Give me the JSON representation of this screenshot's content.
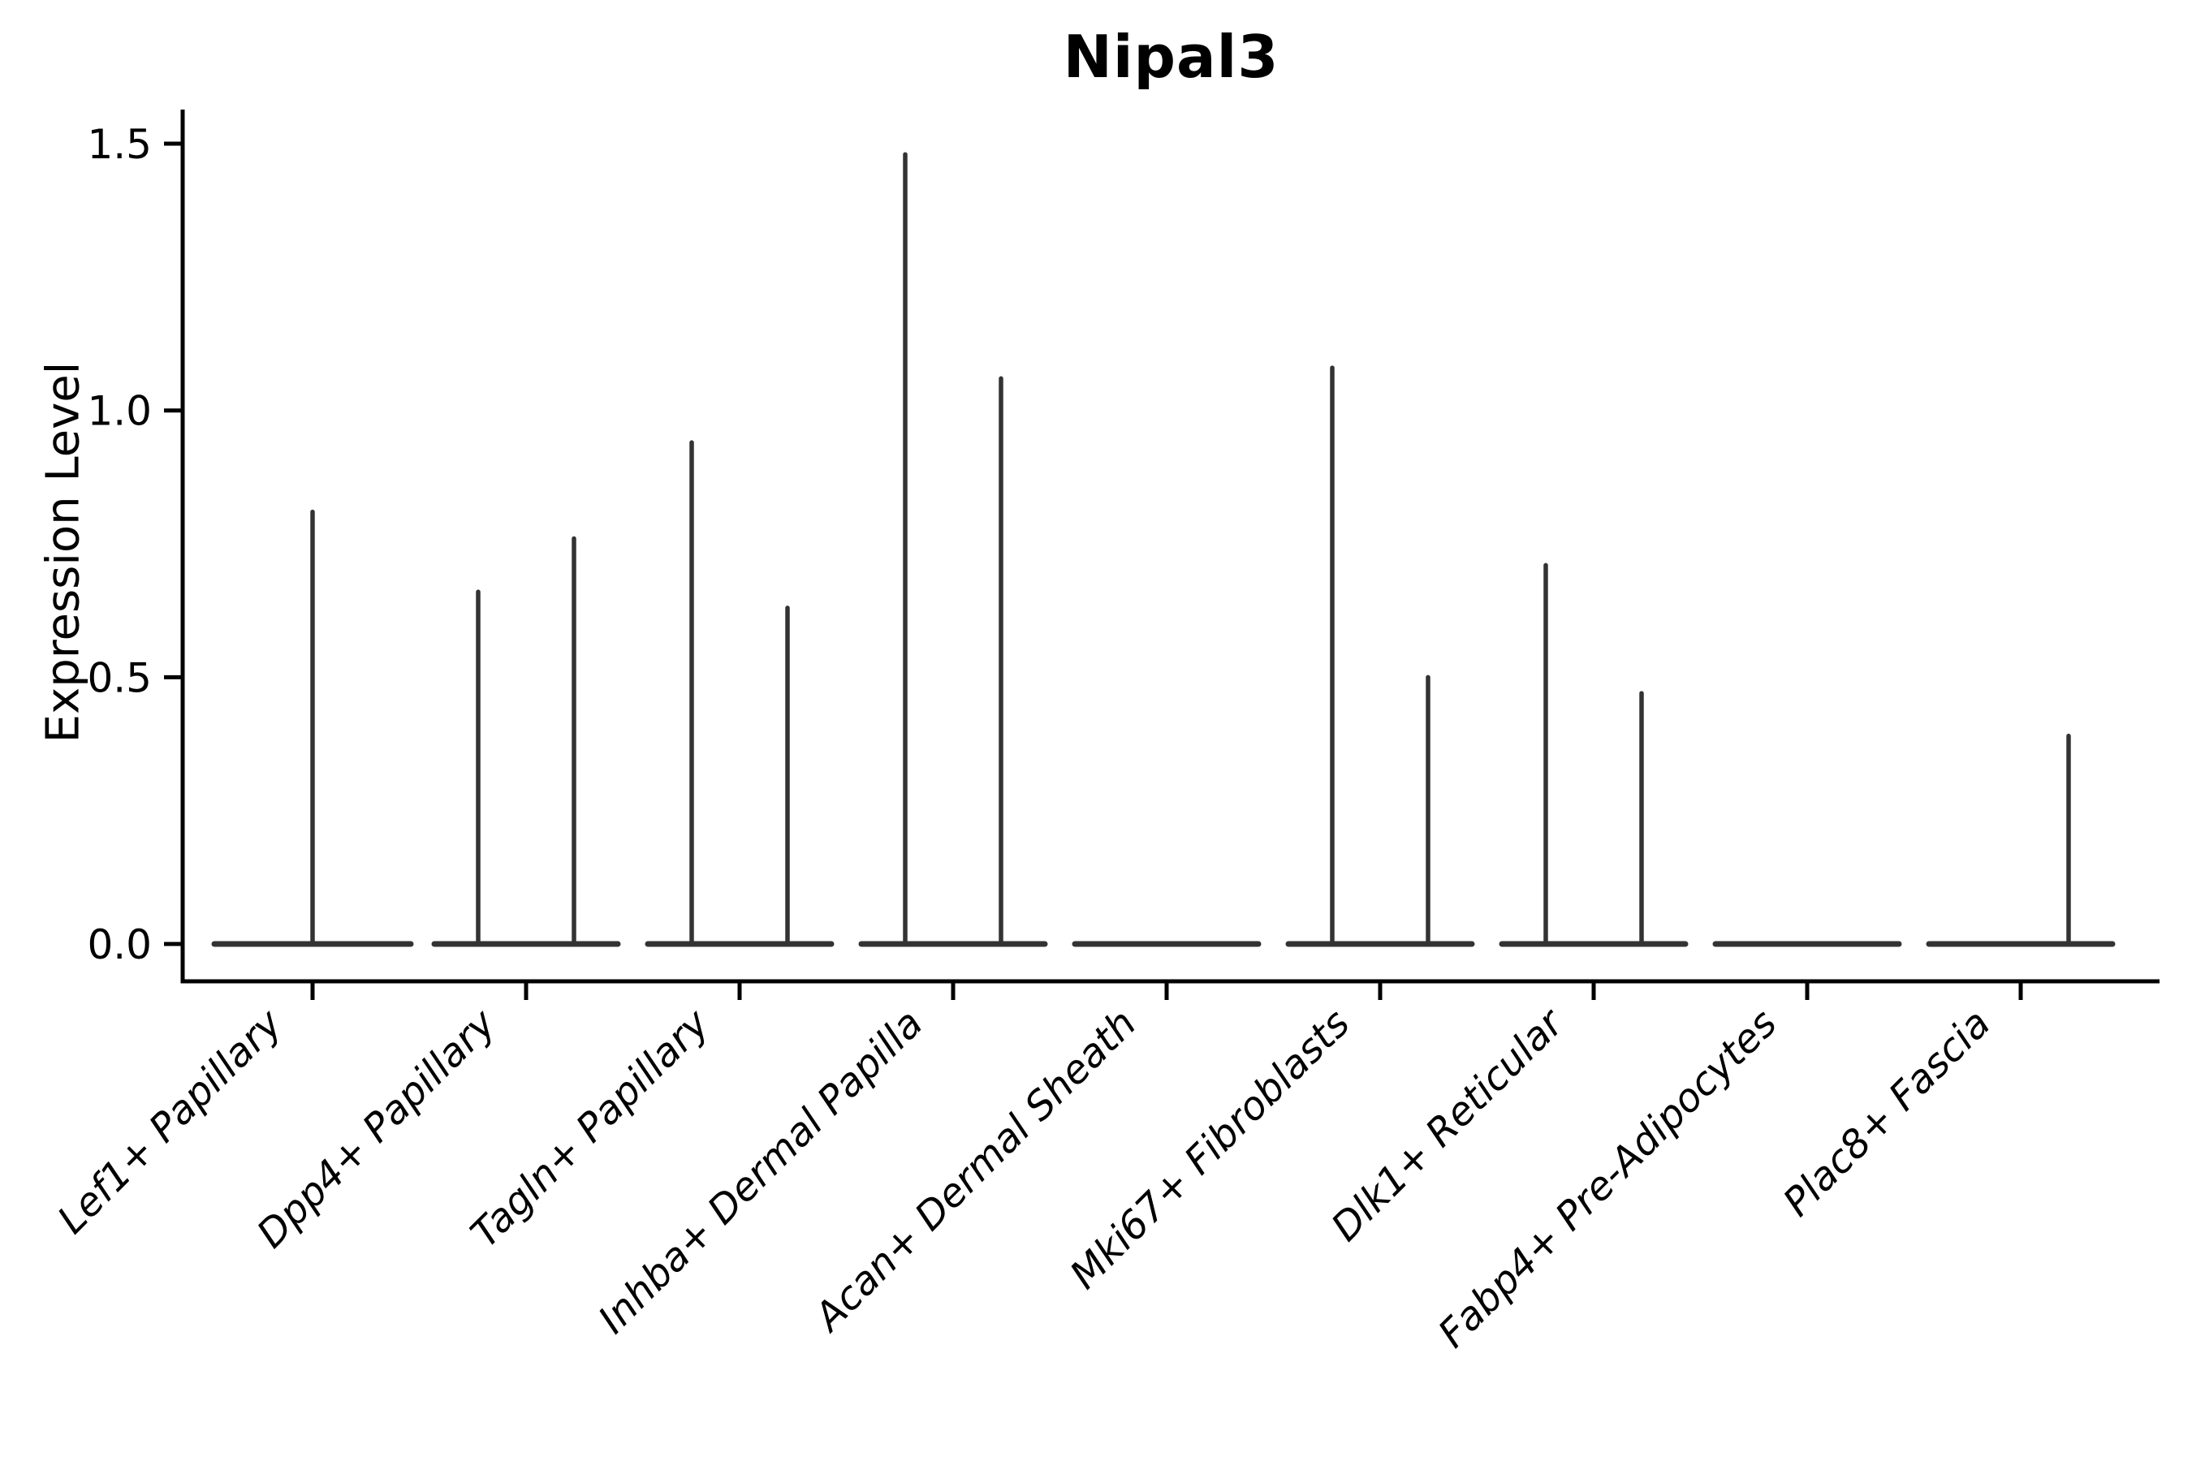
{
  "chart_data": {
    "type": "violin",
    "title": "Nipal3",
    "xlabel": "",
    "ylabel": "Expression Level",
    "ylim": [
      0,
      1.56
    ],
    "yticks": [
      0.0,
      0.5,
      1.0,
      1.5
    ],
    "ytick_labels": [
      "0.0",
      "0.5",
      "1.0",
      "1.5"
    ],
    "grid": false,
    "legend": "none",
    "categories": [
      "Lef1+ Papillary",
      "Dpp4+ Papillary",
      "Tagln+ Papillary",
      "Inhba+ Dermal Papilla",
      "Acan+ Dermal Sheath",
      "Mki67+ Fibroblasts",
      "Dlk1+ Reticular",
      "Fabp4+ Pre-Adipocytes",
      "Plac8+ Fascia"
    ],
    "description": "Violin plot of Nipal3 expression per fibroblast cluster; each violin collapses to a flat bar at 0 with thin spikes up to the maximum expression value.",
    "violins": [
      {
        "category": "Lef1+ Papillary",
        "spikes": [
          {
            "pos": "center",
            "max": 0.81
          }
        ]
      },
      {
        "category": "Dpp4+ Papillary",
        "spikes": [
          {
            "pos": "left",
            "max": 0.66
          },
          {
            "pos": "right",
            "max": 0.76
          }
        ]
      },
      {
        "category": "Tagln+ Papillary",
        "spikes": [
          {
            "pos": "left",
            "max": 0.94
          },
          {
            "pos": "right",
            "max": 0.63
          }
        ]
      },
      {
        "category": "Inhba+ Dermal Papilla",
        "spikes": [
          {
            "pos": "left",
            "max": 1.48
          },
          {
            "pos": "right",
            "max": 1.06
          }
        ]
      },
      {
        "category": "Acan+ Dermal Sheath",
        "spikes": []
      },
      {
        "category": "Mki67+ Fibroblasts",
        "spikes": [
          {
            "pos": "left",
            "max": 1.08
          },
          {
            "pos": "right",
            "max": 0.5
          }
        ]
      },
      {
        "category": "Dlk1+ Reticular",
        "spikes": [
          {
            "pos": "left",
            "max": 0.71
          },
          {
            "pos": "right",
            "max": 0.47
          }
        ]
      },
      {
        "category": "Fabp4+ Pre-Adipocytes",
        "spikes": []
      },
      {
        "category": "Plac8+ Fascia",
        "spikes": [
          {
            "pos": "right",
            "max": 0.39
          }
        ]
      }
    ],
    "colors": {
      "violin": "#333333",
      "axis": "#000000",
      "text": "#000000",
      "background": "#ffffff"
    }
  }
}
